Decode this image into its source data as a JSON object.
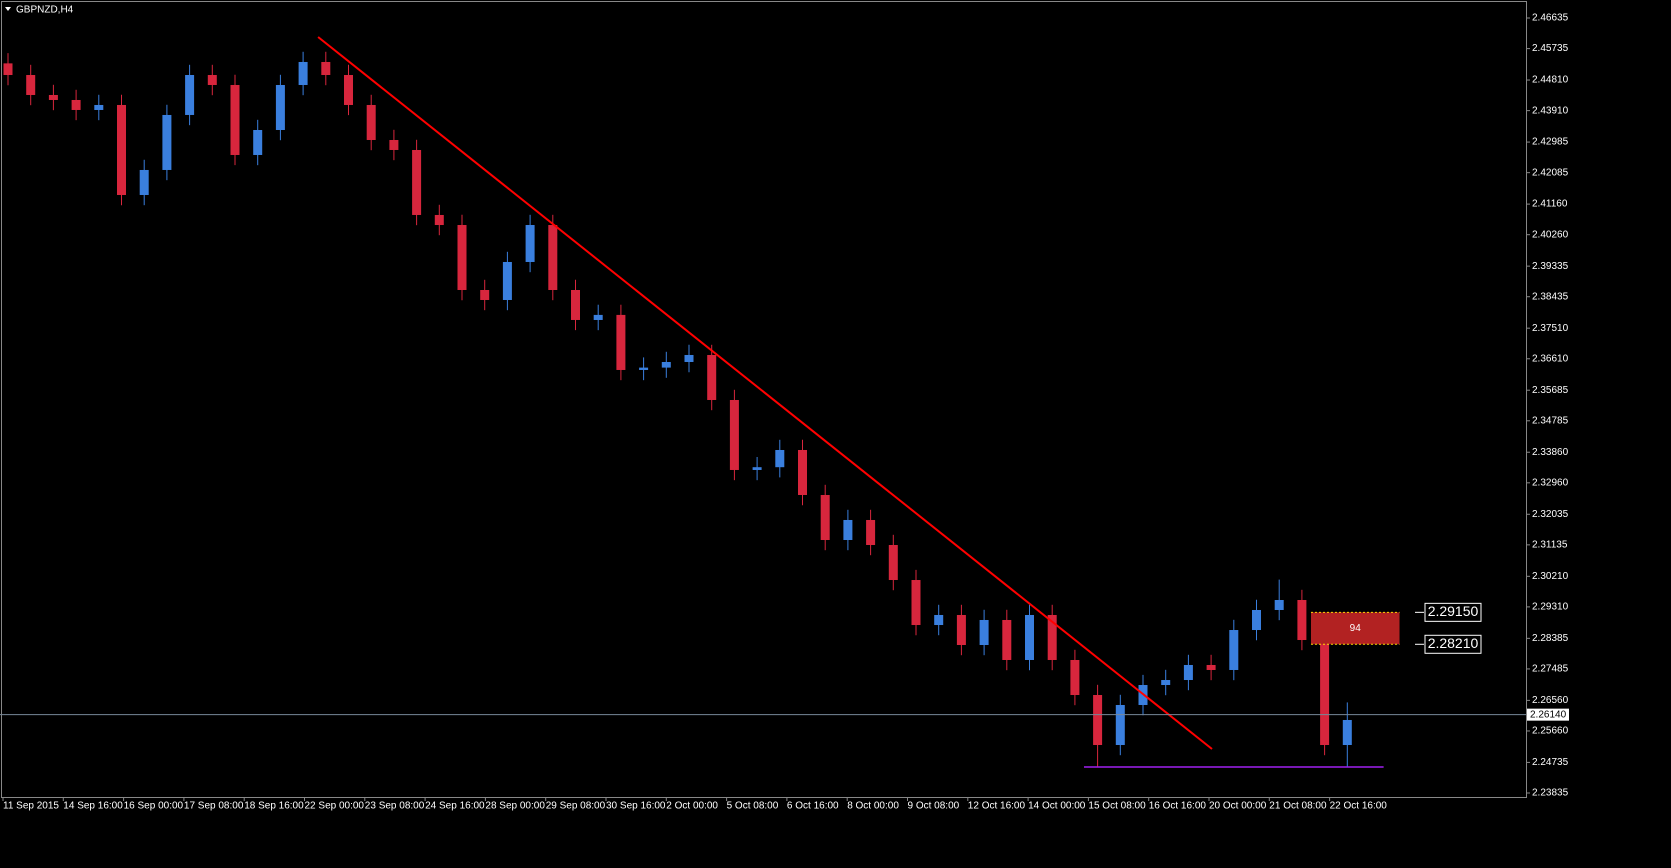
{
  "chart_data": {
    "type": "candlestick",
    "title": "GBPNZD,H4",
    "up_color": "#3a7fde",
    "down_color": "#d7263d",
    "categories": [
      "11 Sep 2015",
      "14 Sep 16:00",
      "16 Sep 00:00",
      "17 Sep 08:00",
      "18 Sep 16:00",
      "22 Sep 00:00",
      "23 Sep 08:00",
      "24 Sep 16:00",
      "28 Sep 00:00",
      "29 Sep 08:00",
      "30 Sep 16:00",
      "2 Oct 00:00",
      "5 Oct 08:00",
      "6 Oct 16:00",
      "8 Oct 00:00",
      "9 Oct 08:00",
      "12 Oct 16:00",
      "14 Oct 00:00",
      "15 Oct 08:00",
      "16 Oct 16:00",
      "20 Oct 00:00",
      "21 Oct 08:00",
      "22 Oct 16:00"
    ],
    "open": [
      2.453,
      2.44958,
      2.4437,
      2.44223,
      2.43929,
      2.44076,
      2.41428,
      2.42164,
      2.43782,
      2.44958,
      2.44664,
      2.42605,
      2.4334,
      2.44664,
      2.45341,
      2.44958,
      2.44076,
      2.43046,
      2.42752,
      2.4084,
      2.40545,
      2.38633,
      2.38339,
      2.39457,
      2.40545,
      2.38633,
      2.37751,
      2.379,
      2.3628,
      2.3635,
      2.36515,
      2.36721,
      2.35397,
      2.33338,
      2.3342,
      2.33926,
      2.32602,
      2.31278,
      2.31867,
      2.31131,
      2.30101,
      2.28777,
      2.29072,
      2.28189,
      2.28925,
      2.27748,
      2.29072,
      2.27748,
      2.26718,
      2.25247,
      2.26424,
      2.27012,
      2.27159,
      2.27601,
      2.27454,
      2.2863,
      2.29219,
      2.29513,
      2.28336,
      2.25247
    ],
    "high": [
      2.456,
      2.45258,
      2.4467,
      2.44523,
      2.44376,
      2.44376,
      2.42464,
      2.44082,
      2.45258,
      2.45258,
      2.44964,
      2.4364,
      2.44964,
      2.45641,
      2.45641,
      2.45258,
      2.44376,
      2.43346,
      2.43052,
      2.4114,
      2.40845,
      2.38933,
      2.39757,
      2.40845,
      2.40845,
      2.38933,
      2.382,
      2.382,
      2.3665,
      2.36815,
      2.37021,
      2.37021,
      2.35697,
      2.3372,
      2.34226,
      2.34226,
      2.32902,
      2.32167,
      2.32167,
      2.31431,
      2.30401,
      2.29372,
      2.29372,
      2.29225,
      2.29225,
      2.29372,
      2.29372,
      2.28048,
      2.27018,
      2.26724,
      2.27312,
      2.27459,
      2.27901,
      2.27901,
      2.2893,
      2.29519,
      2.30113,
      2.29813,
      2.28636,
      2.265
    ],
    "low": [
      2.44658,
      2.4407,
      2.43923,
      2.43629,
      2.43629,
      2.41128,
      2.41128,
      2.41864,
      2.43482,
      2.44364,
      2.42305,
      2.42305,
      2.4304,
      2.44364,
      2.44658,
      2.43776,
      2.42746,
      2.42452,
      2.4054,
      2.40245,
      2.38333,
      2.38039,
      2.38039,
      2.39157,
      2.38333,
      2.37451,
      2.37451,
      2.3598,
      2.3598,
      2.3605,
      2.36215,
      2.35097,
      2.33038,
      2.33038,
      2.3312,
      2.32302,
      2.30978,
      2.30978,
      2.30831,
      2.29801,
      2.28477,
      2.28477,
      2.27889,
      2.27889,
      2.27448,
      2.27448,
      2.27448,
      2.26418,
      2.246,
      2.24947,
      2.26124,
      2.26712,
      2.26859,
      2.27154,
      2.27154,
      2.2833,
      2.28919,
      2.28036,
      2.24947,
      2.246
    ],
    "close": [
      2.44958,
      2.4437,
      2.44223,
      2.43929,
      2.44076,
      2.41428,
      2.42164,
      2.43782,
      2.44958,
      2.44664,
      2.42605,
      2.4334,
      2.44664,
      2.45341,
      2.44958,
      2.44076,
      2.43046,
      2.42752,
      2.4084,
      2.40545,
      2.38633,
      2.38339,
      2.39457,
      2.40545,
      2.38633,
      2.37751,
      2.379,
      2.3628,
      2.3635,
      2.36515,
      2.36721,
      2.35397,
      2.33338,
      2.3342,
      2.33926,
      2.32602,
      2.31278,
      2.31867,
      2.31131,
      2.30101,
      2.28777,
      2.29072,
      2.28189,
      2.28925,
      2.27748,
      2.29072,
      2.27748,
      2.26718,
      2.25247,
      2.26424,
      2.27012,
      2.27159,
      2.27601,
      2.27454,
      2.2863,
      2.29219,
      2.29513,
      2.28336,
      2.25247,
      2.25983
    ],
    "ylim": [
      2.23835,
      2.46635
    ],
    "yticks": [
      2.46635,
      2.45735,
      {
        "value": 2.4481,
        "label": "2.44810"
      },
      {
        "value": 2.4391,
        "label": "2.43910"
      },
      2.42985,
      2.42085,
      {
        "value": 2.4116,
        "label": "2.41160"
      },
      {
        "value": 2.4026,
        "label": "2.40260"
      },
      2.39335,
      2.38435,
      {
        "value": 2.3751,
        "label": "2.37510"
      },
      {
        "value": 2.3661,
        "label": "2.36610"
      },
      2.35685,
      2.34785,
      {
        "value": 2.3386,
        "label": "2.33860"
      },
      {
        "value": 2.3296,
        "label": "2.32960"
      },
      2.32035,
      2.31135,
      {
        "value": 2.3021,
        "label": "2.30210"
      },
      {
        "value": 2.2931,
        "label": "2.29310"
      },
      2.28385,
      2.27485,
      {
        "value": 2.2656,
        "label": "2.26560"
      },
      {
        "value": 2.2566,
        "label": "2.25660"
      },
      2.24735,
      2.23835
    ],
    "current_price": {
      "value": 2.2614,
      "label": "2.26140"
    },
    "current_price_color": "#778899",
    "trendline": {
      "x": [
        13.66,
        53.04
      ],
      "y": [
        2.46076,
        2.25129
      ],
      "color": "#ff0000"
    },
    "support": {
      "x": [
        47.4,
        60.6
      ],
      "y": 2.246,
      "color": "#a020f0"
    },
    "zone": {
      "upper": {
        "value": 2.2915,
        "label": "2.29150"
      },
      "lower": {
        "value": 2.2821,
        "label": "2.28210"
      },
      "pips": 94,
      "color": "#b22222",
      "border_color": "#ffd700",
      "x": [
        57.4,
        61.3
      ]
    }
  }
}
